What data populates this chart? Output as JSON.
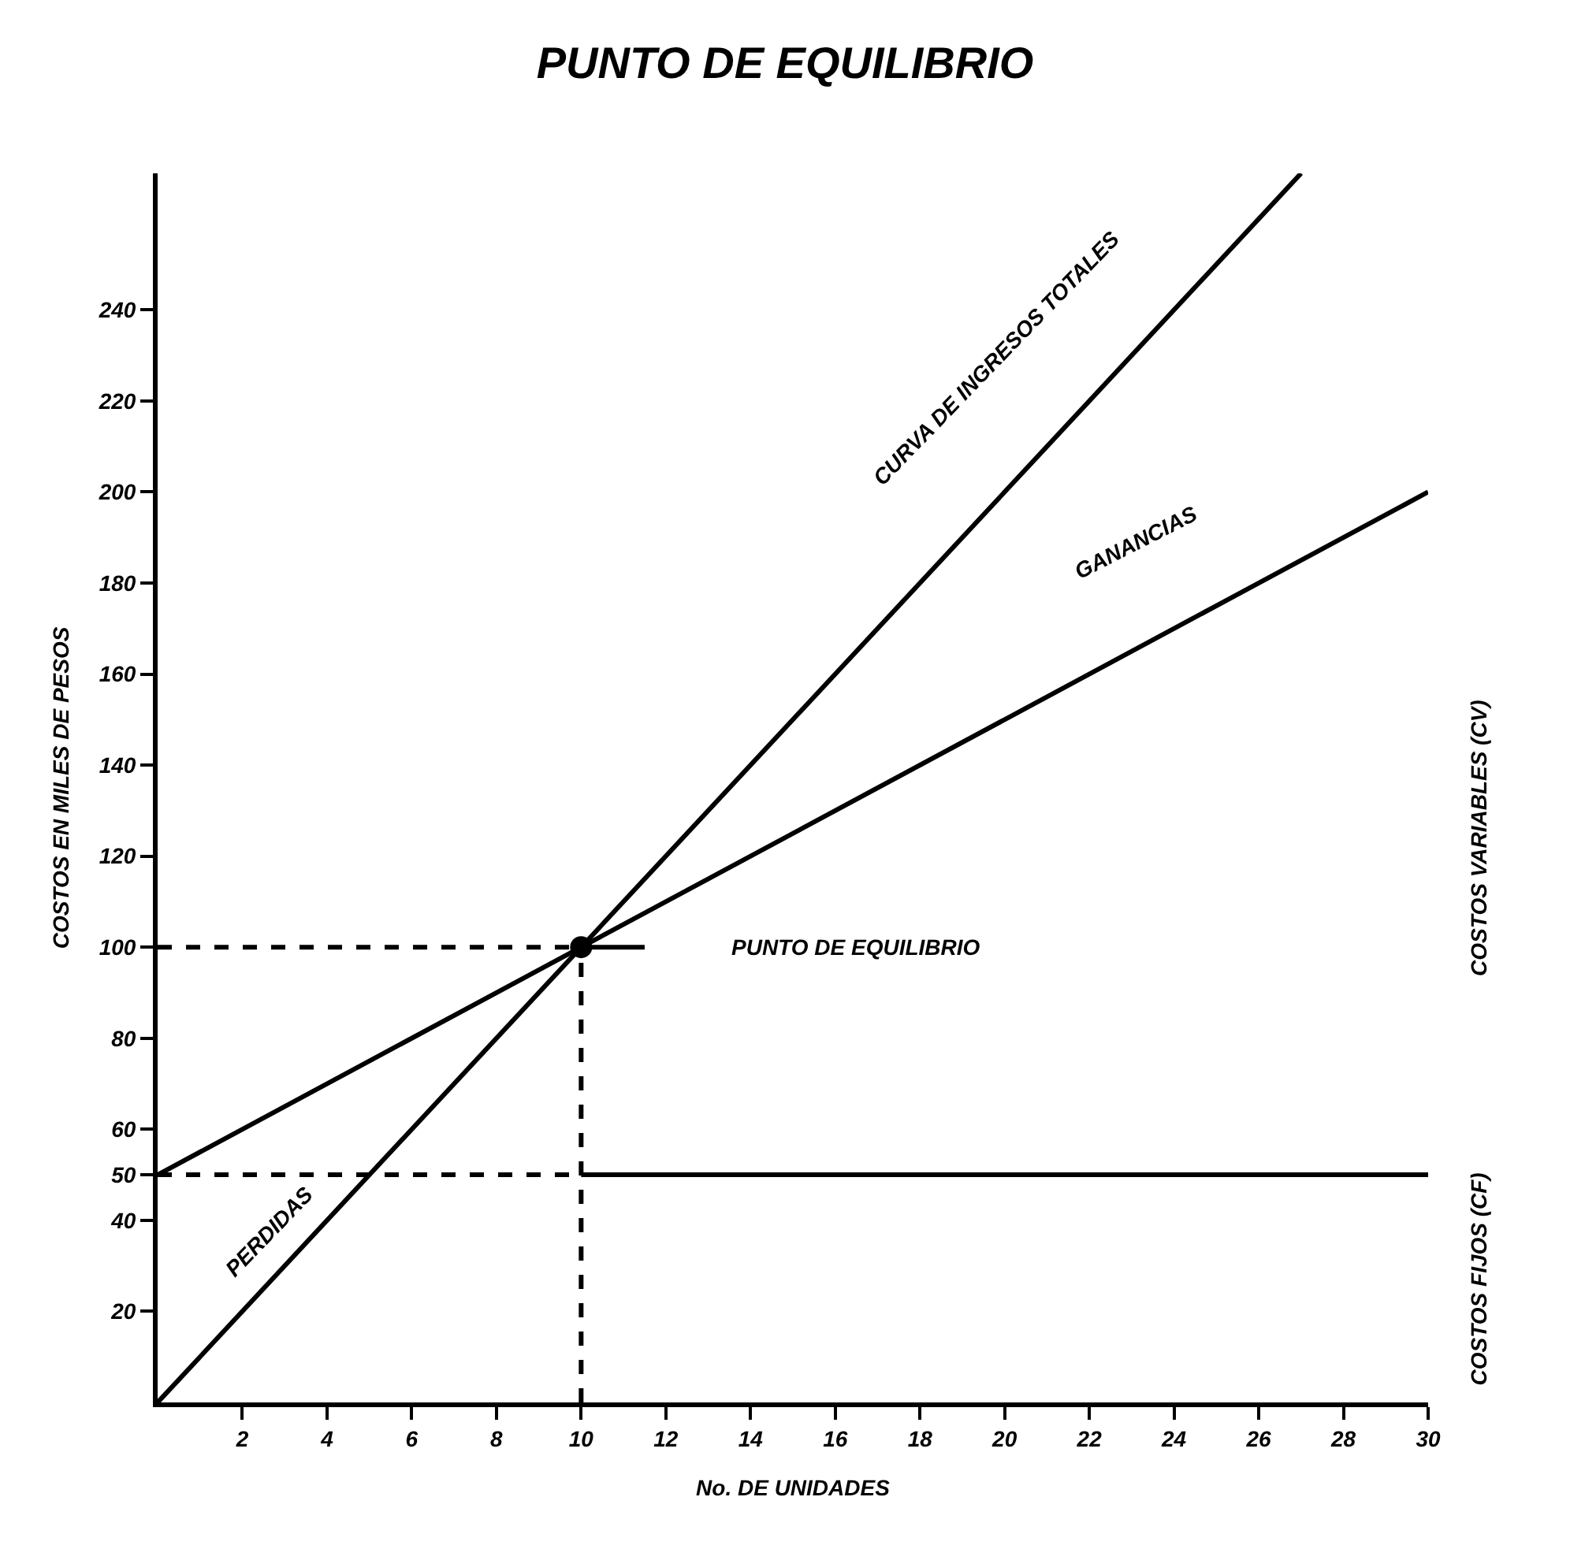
{
  "chart_data": {
    "type": "line",
    "title": "PUNTO DE EQUILIBRIO",
    "xlabel": "No. DE UNIDADES",
    "ylabel": "COSTOS EN MILES DE PESOS",
    "xlim": [
      0,
      30
    ],
    "xticks": [
      2,
      4,
      6,
      8,
      10,
      12,
      14,
      16,
      18,
      20,
      22,
      24,
      26,
      28,
      30
    ],
    "ylim": [
      0,
      270
    ],
    "yticks": [
      20,
      40,
      50,
      60,
      80,
      100,
      120,
      140,
      160,
      180,
      200,
      220,
      240
    ],
    "series": [
      {
        "color": "#000000",
        "x": [
          0,
          27
        ],
        "values": [
          0,
          270
        ],
        "line_style": "solid"
      },
      {
        "color": "#000000",
        "x": [
          0,
          30
        ],
        "values": [
          50,
          200
        ],
        "line_style": "solid"
      },
      {
        "color": "#000000",
        "x": [
          10,
          30
        ],
        "values": [
          50,
          50
        ],
        "line_style": "solid"
      },
      {
        "color": "#000000",
        "x": [
          0,
          10
        ],
        "values": [
          50,
          50
        ],
        "line_style": "dashed"
      },
      {
        "color": "#000000",
        "x": [
          0,
          10
        ],
        "values": [
          100,
          100
        ],
        "line_style": "dashed"
      },
      {
        "color": "#000000",
        "x": [
          10,
          11.5
        ],
        "values": [
          100,
          100
        ],
        "line_style": "solid"
      },
      {
        "color": "#000000",
        "x": [
          10,
          10
        ],
        "values": [
          0,
          100
        ],
        "line_style": "dashed"
      },
      {
        "type": "scatter",
        "color": "#000000",
        "x": [
          10
        ],
        "values": [
          100
        ],
        "marker": "circle"
      }
    ],
    "annotations": [
      "CURVA DE INGRESOS TOTALES",
      "GANANCIAS",
      "PERDIDAS",
      "PUNTO DE EQUILIBRIO",
      "COSTOS VARIABLES (CV)",
      "COSTOS FIJOS (CF)"
    ]
  }
}
